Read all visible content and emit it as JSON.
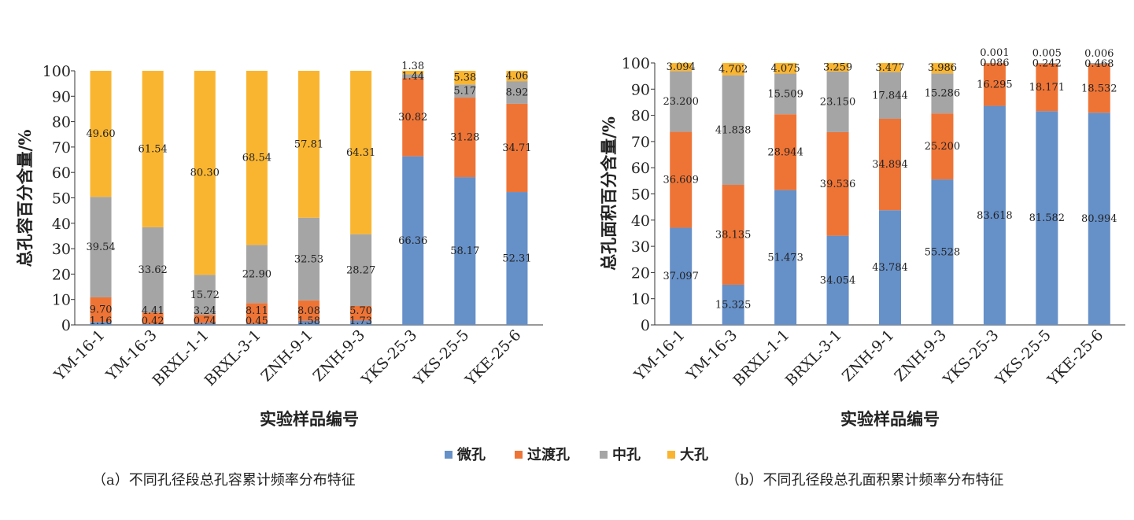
{
  "legend": {
    "items": [
      {
        "name": "微孔",
        "color": "#6690c8"
      },
      {
        "name": "过渡孔",
        "color": "#ee7436"
      },
      {
        "name": "中孔",
        "color": "#a5a5a5"
      },
      {
        "name": "大孔",
        "color": "#fab530"
      }
    ]
  },
  "captions": {
    "a": "（a）不同孔径段总孔容累计频率分布特征",
    "b": "（b）不同孔径段总孔面积累计频率分布特征"
  },
  "chart_data": [
    {
      "type": "bar",
      "stacked": true,
      "title": "",
      "xlabel": "实验样品编号",
      "ylabel": "总孔容百分含量/%",
      "ylim": [
        0,
        100
      ],
      "yticks": [
        0,
        10,
        20,
        30,
        40,
        50,
        60,
        70,
        80,
        90,
        100
      ],
      "grid": false,
      "categories": [
        "YM-16-1",
        "YM-16-3",
        "BRXL-1-1",
        "BRXL-3-1",
        "ZNH-9-1",
        "ZNH-9-3",
        "YKS-25-3",
        "YKS-25-5",
        "YKE-25-6"
      ],
      "series": [
        {
          "name": "微孔",
          "values": [
            1.16,
            0.42,
            0.74,
            0.45,
            1.58,
            1.73,
            66.36,
            58.17,
            52.31
          ],
          "labels": [
            "1.16",
            "0.42",
            "0.74",
            "0.45",
            "1.58",
            "1.73",
            "66.36",
            "58.17",
            "52.31"
          ]
        },
        {
          "name": "过渡孔",
          "values": [
            9.7,
            4.41,
            3.24,
            8.11,
            8.08,
            5.7,
            30.82,
            31.28,
            34.71
          ],
          "labels": [
            "9.70",
            "4.41",
            "3.24",
            "8.11",
            "8.08",
            "5.70",
            "30.82",
            "31.28",
            "34.71"
          ]
        },
        {
          "name": "中孔",
          "values": [
            39.54,
            33.62,
            15.72,
            22.9,
            32.53,
            28.27,
            1.44,
            5.17,
            8.92
          ],
          "labels": [
            "39.54",
            "33.62",
            "15.72",
            "22.90",
            "32.53",
            "28.27",
            "1.44",
            "5.17",
            "8.92"
          ]
        },
        {
          "name": "大孔",
          "values": [
            49.6,
            61.54,
            80.3,
            68.54,
            57.81,
            64.31,
            1.38,
            5.38,
            4.06
          ],
          "labels": [
            "49.60",
            "61.54",
            "80.30",
            "68.54",
            "57.81",
            "64.31",
            "1.38",
            "5.38",
            "4.06"
          ]
        }
      ]
    },
    {
      "type": "bar",
      "stacked": true,
      "title": "",
      "xlabel": "实验样品编号",
      "ylabel": "总孔面积百分含量/%",
      "ylim": [
        0,
        100
      ],
      "yticks": [
        0,
        10,
        20,
        30,
        40,
        50,
        60,
        70,
        80,
        90,
        100
      ],
      "grid": false,
      "categories": [
        "YM-16-1",
        "YM-16-3",
        "BRXL-1-1",
        "BRXL-3-1",
        "ZNH-9-1",
        "ZNH-9-3",
        "YKS-25-3",
        "YKS-25-5",
        "YKE-25-6"
      ],
      "series": [
        {
          "name": "微孔",
          "values": [
            37.097,
            15.325,
            51.473,
            34.054,
            43.784,
            55.528,
            83.618,
            81.582,
            80.994
          ],
          "labels": [
            "37.097",
            "15.325",
            "51.473",
            "34.054",
            "43.784",
            "55.528",
            "83.618",
            "81.582",
            "80.994"
          ]
        },
        {
          "name": "过渡孔",
          "values": [
            36.609,
            38.135,
            28.944,
            39.536,
            34.894,
            25.2,
            16.295,
            18.171,
            18.532
          ],
          "labels": [
            "36.609",
            "38.135",
            "28.944",
            "39.536",
            "34.894",
            "25.200",
            "16.295",
            "18.171",
            "18.532"
          ]
        },
        {
          "name": "中孔",
          "values": [
            23.2,
            41.838,
            15.509,
            23.15,
            17.844,
            15.286,
            0.086,
            0.242,
            0.468
          ],
          "labels": [
            "23.200",
            "41.838",
            "15.509",
            "23.150",
            "17.844",
            "15.286",
            "0.086",
            "0.242",
            "0.468"
          ]
        },
        {
          "name": "大孔",
          "values": [
            3.094,
            4.702,
            4.075,
            3.259,
            3.477,
            3.986,
            0.001,
            0.005,
            0.006
          ],
          "labels": [
            "3.094",
            "4.702",
            "4.075",
            "3.259",
            "3.477",
            "3.986",
            "0.001",
            "0.005",
            "0.006"
          ]
        }
      ]
    }
  ]
}
